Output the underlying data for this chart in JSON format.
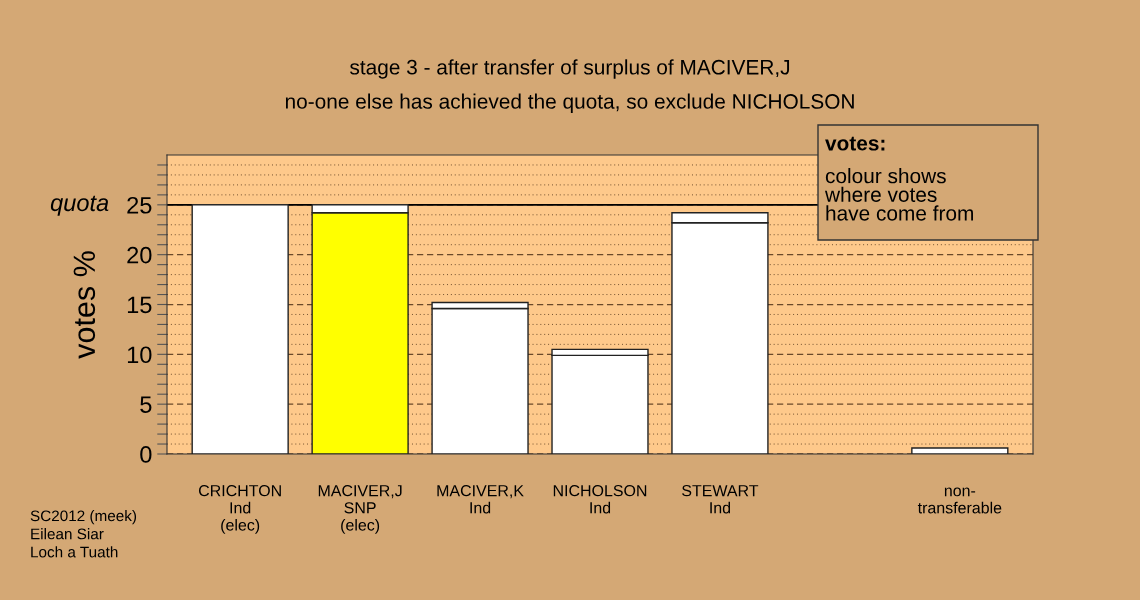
{
  "chart_data": {
    "type": "bar",
    "title": "stage 3 - after transfer of surplus of MACIVER,J",
    "subtitle": "no-one else has achieved the quota, so exclude NICHOLSON",
    "ylabel": "votes %",
    "categories": [
      "CRICHTON\nInd\n(elec)",
      "MACIVER,J\nSNP\n(elec)",
      "MACIVER,K\nInd",
      "NICHOLSON\nInd",
      "STEWART\nInd",
      null,
      "non-\ntransferable"
    ],
    "stacked": true,
    "series": [
      {
        "colors": [
          "#ffffff",
          "#ffff00",
          "#ffffff",
          "#ffffff",
          "#ffffff",
          "#ffffff",
          "#ffffff"
        ],
        "values": [
          25,
          24.2,
          14.6,
          9.9,
          23.2,
          null,
          0.6
        ]
      },
      {
        "colors": [
          "#ffffff",
          "#ffffff",
          "#ffffff",
          "#ffffff",
          "#ffffff",
          "#ffffff",
          "#ffffff"
        ],
        "values": [
          null,
          0.8,
          0.6,
          0.6,
          1.0,
          null,
          null
        ]
      }
    ],
    "ylim": [
      0,
      30
    ],
    "yticks": [
      0,
      {
        "value": 1,
        "label": null
      },
      {
        "value": 2,
        "label": null
      },
      {
        "value": 3,
        "label": null
      },
      {
        "value": 4,
        "label": null
      },
      5,
      {
        "value": 6,
        "label": null
      },
      {
        "value": 7,
        "label": null
      },
      {
        "value": 8,
        "label": null
      },
      {
        "value": 9,
        "label": null
      },
      10,
      {
        "value": 11,
        "label": null
      },
      {
        "value": 12,
        "label": null
      },
      {
        "value": 13,
        "label": null
      },
      {
        "value": 14,
        "label": null
      },
      15,
      {
        "value": 16,
        "label": null
      },
      {
        "value": 17,
        "label": null
      },
      {
        "value": 18,
        "label": null
      },
      {
        "value": 19,
        "label": null
      },
      20,
      {
        "value": 21,
        "label": null
      },
      {
        "value": 22,
        "label": null
      },
      {
        "value": 23,
        "label": null
      },
      {
        "value": 24,
        "label": null
      },
      25,
      {
        "value": 26,
        "label": null
      },
      {
        "value": 27,
        "label": null
      },
      {
        "value": 28,
        "label": null
      },
      {
        "value": 29,
        "label": null
      }
    ],
    "grid": "y",
    "ref_lines": [
      {
        "axis": "y",
        "value": 25,
        "label": "quota",
        "color": "#000000",
        "line_style": "solid"
      }
    ],
    "annotations": [
      "votes:",
      "colour shows\nwhere votes\nhave come from",
      "SC2012 (meek)\nEilean Siar\nLoch a Tuath"
    ]
  }
}
